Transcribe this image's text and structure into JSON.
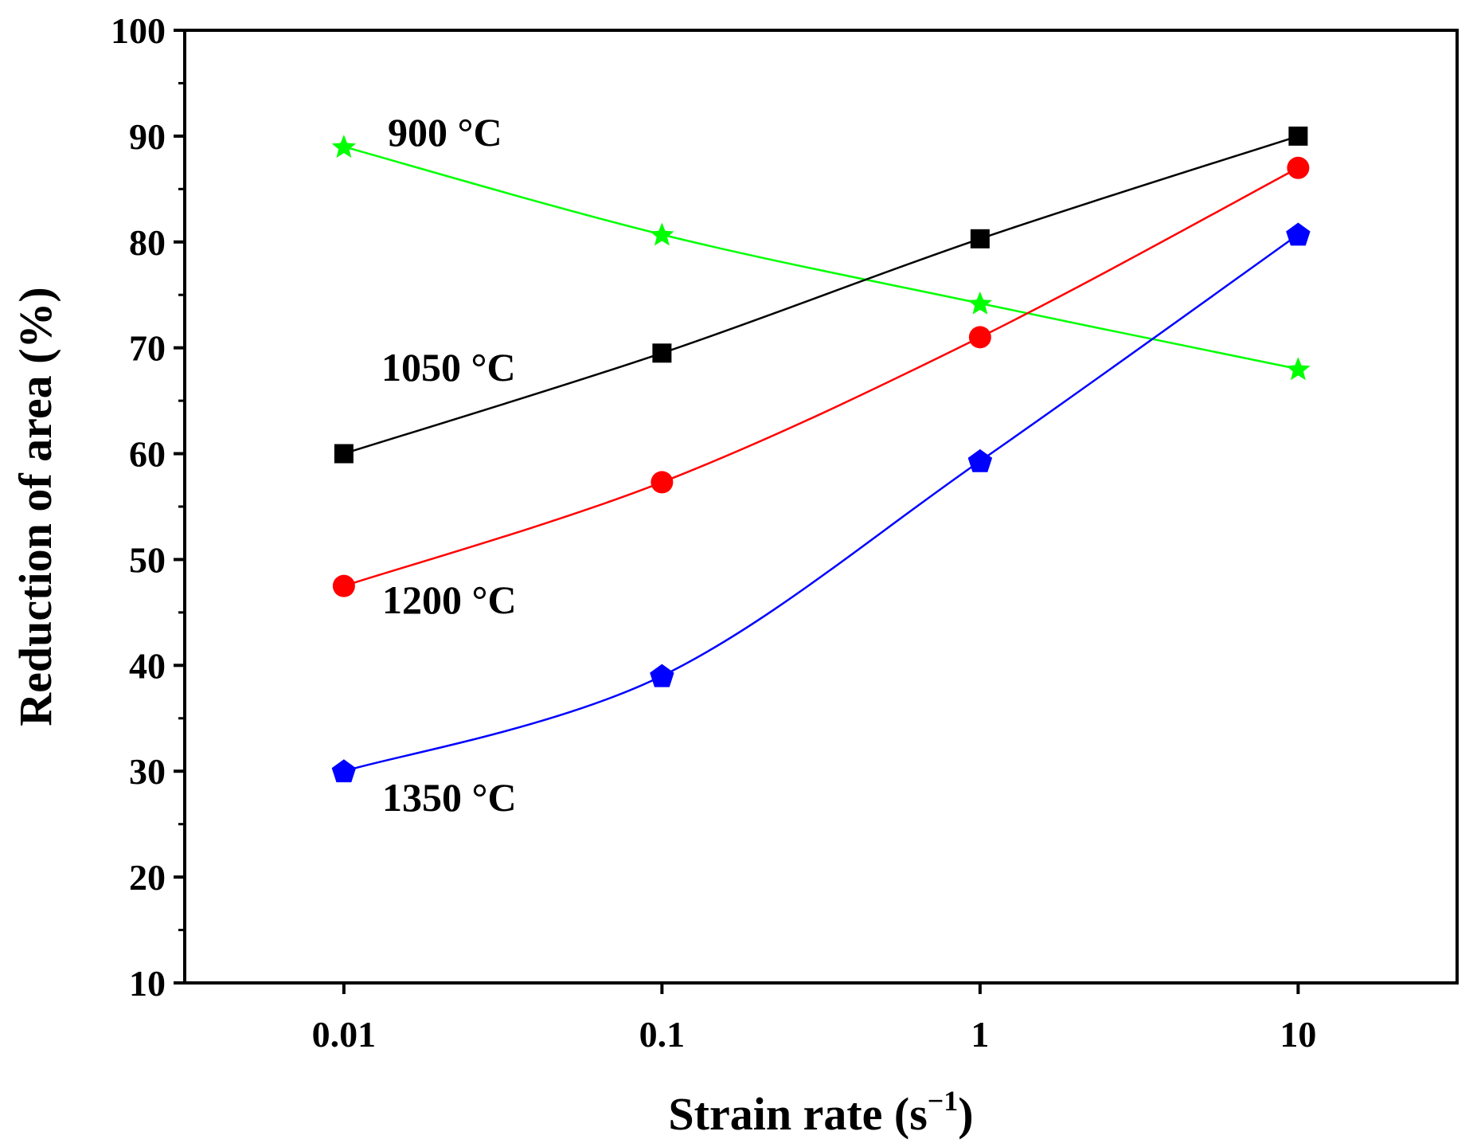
{
  "chart_data": {
    "type": "line",
    "title": "",
    "xlabel": "Strain rate (s",
    "xlabel_superscript": "−1",
    "xlabel_close": ")",
    "ylabel": "Reduction of area (%)",
    "x_scale": "log",
    "categories": [
      "0.01",
      "0.1",
      "1",
      "10"
    ],
    "x": [
      0.01,
      0.1,
      1,
      10
    ],
    "xlim": [
      0.00316,
      31.6
    ],
    "ylim": [
      10,
      100
    ],
    "yticks": [
      "10",
      "20",
      "30",
      "40",
      "50",
      "60",
      "70",
      "80",
      "90",
      "100"
    ],
    "grid": false,
    "series": [
      {
        "name": "900 °C",
        "marker": "star",
        "color": "#00ff00",
        "values": [
          89.0,
          80.7,
          74.2,
          68.0
        ]
      },
      {
        "name": "1050 °C",
        "marker": "square",
        "color": "#000000",
        "values": [
          60.0,
          69.5,
          80.3,
          90.0
        ]
      },
      {
        "name": "1200 °C",
        "marker": "circle",
        "color": "#ff0000",
        "values": [
          47.5,
          57.3,
          71.0,
          87.0
        ]
      },
      {
        "name": "1350 °C",
        "marker": "pentagon",
        "color": "#0000ff",
        "values": [
          30.0,
          39.0,
          59.3,
          80.7
        ]
      }
    ],
    "annotations": [
      {
        "text": "900 °C",
        "series": 0
      },
      {
        "text": "1050 °C",
        "series": 1
      },
      {
        "text": "1200 °C",
        "series": 2
      },
      {
        "text": "1350 °C",
        "series": 3
      }
    ]
  }
}
